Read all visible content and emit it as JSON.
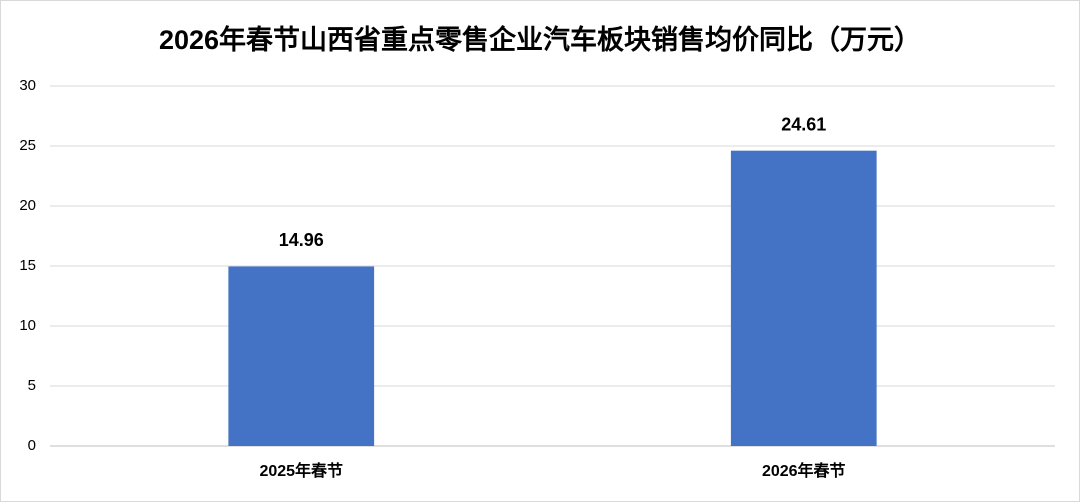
{
  "chart_data": {
    "type": "bar",
    "title": "2026年春节山西省重点零售企业汽车板块销售均价同比（万元）",
    "categories": [
      "2025年春节",
      "2026年春节"
    ],
    "values": [
      14.96,
      24.61
    ],
    "color": "#4472c4",
    "ylim": [
      0,
      30
    ],
    "yticks": [
      0,
      5,
      10,
      15,
      20,
      25,
      30
    ],
    "grid": true
  }
}
